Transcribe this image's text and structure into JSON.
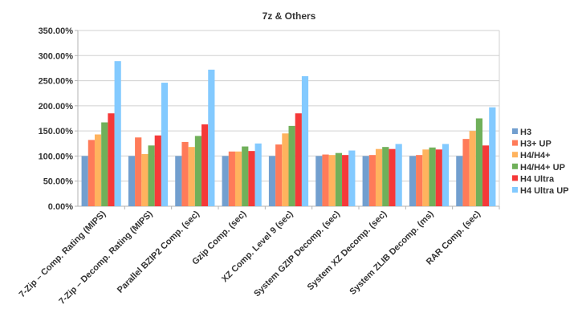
{
  "chart_data": {
    "type": "bar",
    "title": "7z & Others",
    "xlabel": "",
    "ylabel": "",
    "ylim": [
      0,
      350
    ],
    "yticks": [
      "0.00%",
      "50.00%",
      "100.00%",
      "150.00%",
      "200.00%",
      "250.00%",
      "300.00%",
      "350.00%"
    ],
    "grid": true,
    "legend_position": "right",
    "categories": [
      "7-Zip – Comp. Rating (MIPS)",
      "7-Zip – Decomp. Rating (MIPS)",
      "Parallel BZIP2 Comp. (sec)",
      "Gzip Comp. (sec)",
      "XZ Comp. Level 9 (sec)",
      "System GZIP Decomp. (sec)",
      "System XZ Decomp. (sec)",
      "System ZLIB Decomp. (ms)",
      "RAR Comp. (sec)"
    ],
    "series": [
      {
        "name": "H3",
        "color": "#729fcf",
        "values": [
          100,
          100,
          100,
          100,
          100,
          100,
          100,
          100,
          100
        ]
      },
      {
        "name": "H3+ UP",
        "color": "#ff7b59",
        "values": [
          132,
          137,
          128,
          109,
          123,
          103,
          102,
          102,
          134
        ]
      },
      {
        "name": "H4/H4+",
        "color": "#ffb35e",
        "values": [
          143,
          104,
          118,
          109,
          145,
          102,
          114,
          113,
          150
        ]
      },
      {
        "name": "H4/H4+ UP",
        "color": "#70b05a",
        "values": [
          167,
          121,
          140,
          119,
          160,
          106,
          118,
          117,
          175
        ]
      },
      {
        "name": "H4 Ultra",
        "color": "#f53939",
        "values": [
          185,
          141,
          163,
          110,
          185,
          102,
          114,
          113,
          121
        ]
      },
      {
        "name": "H4 Ultra UP",
        "color": "#83caff",
        "values": [
          289,
          246,
          272,
          125,
          259,
          111,
          124,
          124,
          197
        ]
      }
    ]
  }
}
